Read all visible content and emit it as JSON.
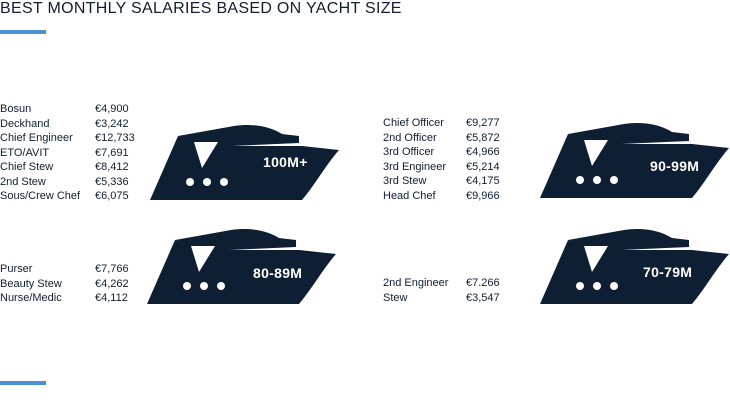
{
  "title": "BEST MONTHLY SALARIES BASED ON YACHT SIZE",
  "colors": {
    "accent": "#4a90d9",
    "boat": "#0f1f33",
    "text": "#0f1f33"
  },
  "groups": [
    {
      "size": "100M+",
      "rows": [
        {
          "role": "Bosun",
          "salary": "€4,900"
        },
        {
          "role": "Deckhand",
          "salary": "€3,242"
        },
        {
          "role": "Chief Engineer",
          "salary": "€12,733"
        },
        {
          "role": "ETO/AVIT",
          "salary": "€7,691"
        },
        {
          "role": "Chief Stew",
          "salary": "€8,412"
        },
        {
          "role": "2nd Stew",
          "salary": "€5,336"
        },
        {
          "role": "Sous/Crew Chef",
          "salary": "€6,075"
        }
      ]
    },
    {
      "size": "90-99M",
      "rows": [
        {
          "role": "Chief Officer",
          "salary": "€9,277"
        },
        {
          "role": "2nd Officer",
          "salary": "€5,872"
        },
        {
          "role": "3rd Officer",
          "salary": "€4,966"
        },
        {
          "role": "3rd Engineer",
          "salary": "€5,214"
        },
        {
          "role": "3rd Stew",
          "salary": "€4,175"
        },
        {
          "role": "Head Chef",
          "salary": "€9,966"
        }
      ]
    },
    {
      "size": "80-89M",
      "rows": [
        {
          "role": "Purser",
          "salary": "€7,766"
        },
        {
          "role": "Beauty Stew",
          "salary": "€4,262"
        },
        {
          "role": "Nurse/Medic",
          "salary": "€4,112"
        }
      ]
    },
    {
      "size": "70-79M",
      "rows": [
        {
          "role": "2nd Engineer",
          "salary": "€7.266"
        },
        {
          "role": "Stew",
          "salary": "€3,547"
        }
      ]
    }
  ]
}
